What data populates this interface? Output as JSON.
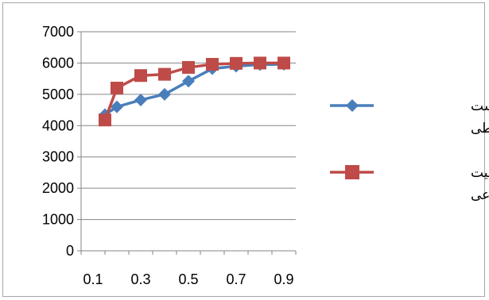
{
  "chart_data": {
    "type": "line",
    "title": "",
    "xlabel": "",
    "ylabel": "",
    "x": [
      0.15,
      0.2,
      0.3,
      0.4,
      0.5,
      0.6,
      0.7,
      0.8,
      0.9
    ],
    "x_ticks": [
      "0.1",
      "0.3",
      "0.5",
      "0.7",
      "0.9"
    ],
    "y_ticks": [
      "0",
      "1000",
      "2000",
      "3000",
      "4000",
      "5000",
      "6000",
      "7000"
    ],
    "ylim": [
      0,
      7000
    ],
    "grid": "horizontal",
    "legend": "right",
    "series": [
      {
        "name": "مسائل زیست محیطی",
        "name_lines": [
          "مسائل زیست",
          "محیطی"
        ],
        "color": "#4a7ebb",
        "marker": "diamond",
        "values": [
          4350,
          4600,
          4820,
          5000,
          5420,
          5820,
          5900,
          5950,
          5960
        ]
      },
      {
        "name": "مسئولیت اجتماعی",
        "name_lines": [
          "مسئولیت",
          "اجتماعی"
        ],
        "color": "#be4b48",
        "marker": "square",
        "values": [
          4180,
          5200,
          5600,
          5640,
          5860,
          5960,
          5990,
          6000,
          6000
        ]
      }
    ]
  }
}
